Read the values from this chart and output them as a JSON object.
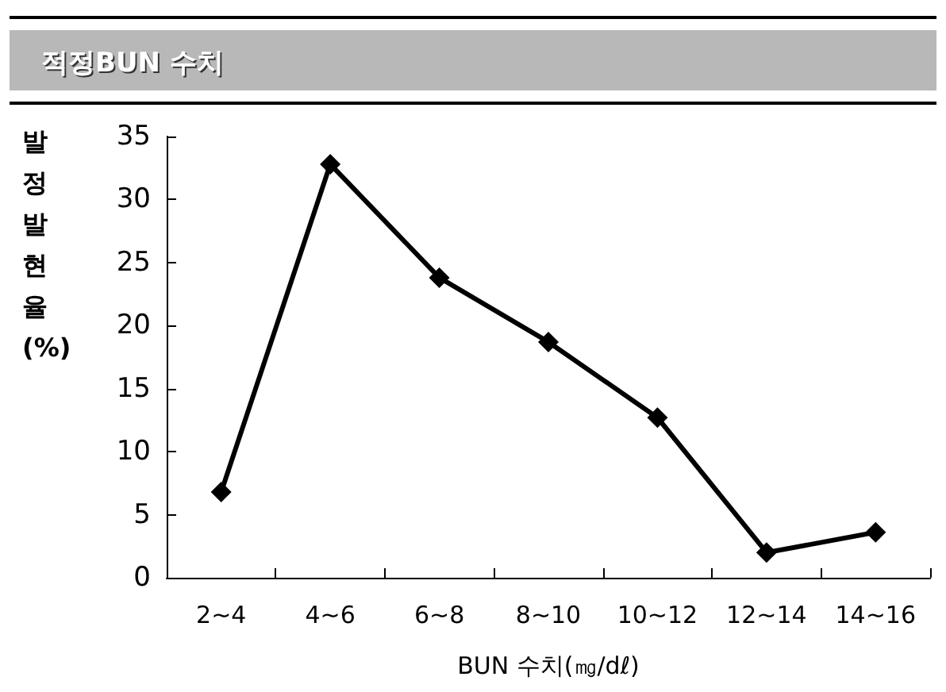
{
  "chart_data": {
    "type": "line",
    "title": "적정BUN 수치",
    "xlabel": "BUN 수치(㎎/dℓ)",
    "ylabel": "발정발현율(%)",
    "categories": [
      "2~4",
      "4~6",
      "6~8",
      "8~10",
      "10~12",
      "12~14",
      "14~16"
    ],
    "series": [
      {
        "color": "#000000",
        "values": [
          6.8,
          32.8,
          23.8,
          18.7,
          12.7,
          2,
          3.6
        ]
      }
    ],
    "ylim": [
      0,
      35
    ],
    "yticks": [
      0,
      5,
      10,
      15,
      20,
      25,
      30,
      35
    ],
    "grid": false,
    "marker": "diamond",
    "line_style": "solid"
  }
}
